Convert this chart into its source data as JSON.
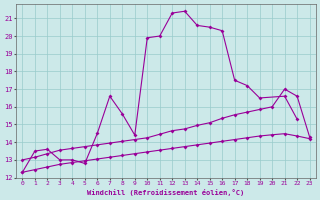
{
  "xlabel": "Windchill (Refroidissement éolien,°C)",
  "xlim": [
    -0.5,
    23.5
  ],
  "ylim": [
    12,
    21.8
  ],
  "xticks": [
    0,
    1,
    2,
    3,
    4,
    5,
    6,
    7,
    8,
    9,
    10,
    11,
    12,
    13,
    14,
    15,
    16,
    17,
    18,
    19,
    20,
    21,
    22,
    23
  ],
  "yticks": [
    12,
    13,
    14,
    15,
    16,
    17,
    18,
    19,
    20,
    21
  ],
  "bg_color": "#cce9e9",
  "line_color": "#990099",
  "grid_color": "#99cccc",
  "series1_x": [
    0,
    1,
    2,
    3,
    4,
    5,
    6,
    7,
    8,
    9,
    10,
    11,
    12,
    13,
    14,
    15,
    16,
    17,
    18,
    19,
    21,
    22
  ],
  "series1_y": [
    12.3,
    13.5,
    13.6,
    13.0,
    13.0,
    12.8,
    14.5,
    16.6,
    15.6,
    14.4,
    19.9,
    20.0,
    21.3,
    21.4,
    20.6,
    20.5,
    20.3,
    17.5,
    17.2,
    16.5,
    16.6,
    15.3
  ],
  "series3_x": [
    0,
    1,
    2,
    3,
    4,
    5,
    6,
    7,
    8,
    9,
    10,
    11,
    12,
    13,
    14,
    15,
    16,
    17,
    18,
    19,
    20,
    21,
    22,
    23
  ],
  "series3_y": [
    12.3,
    12.45,
    12.6,
    12.75,
    12.85,
    12.95,
    13.05,
    13.15,
    13.25,
    13.35,
    13.45,
    13.55,
    13.65,
    13.75,
    13.85,
    13.95,
    14.05,
    14.15,
    14.25,
    14.35,
    14.42,
    14.48,
    14.35,
    14.2
  ],
  "series2_full_x": [
    0,
    1,
    2,
    3,
    4,
    5,
    6,
    7,
    8,
    9,
    10,
    11,
    12,
    13,
    14,
    15,
    16,
    17,
    18,
    19,
    20,
    21,
    22,
    23
  ],
  "series2_full_y": [
    13.0,
    13.15,
    13.35,
    13.55,
    13.65,
    13.75,
    13.85,
    13.95,
    14.05,
    14.15,
    14.25,
    14.45,
    14.65,
    14.75,
    14.95,
    15.1,
    15.35,
    15.55,
    15.7,
    15.85,
    16.0,
    17.0,
    16.6,
    14.3
  ]
}
